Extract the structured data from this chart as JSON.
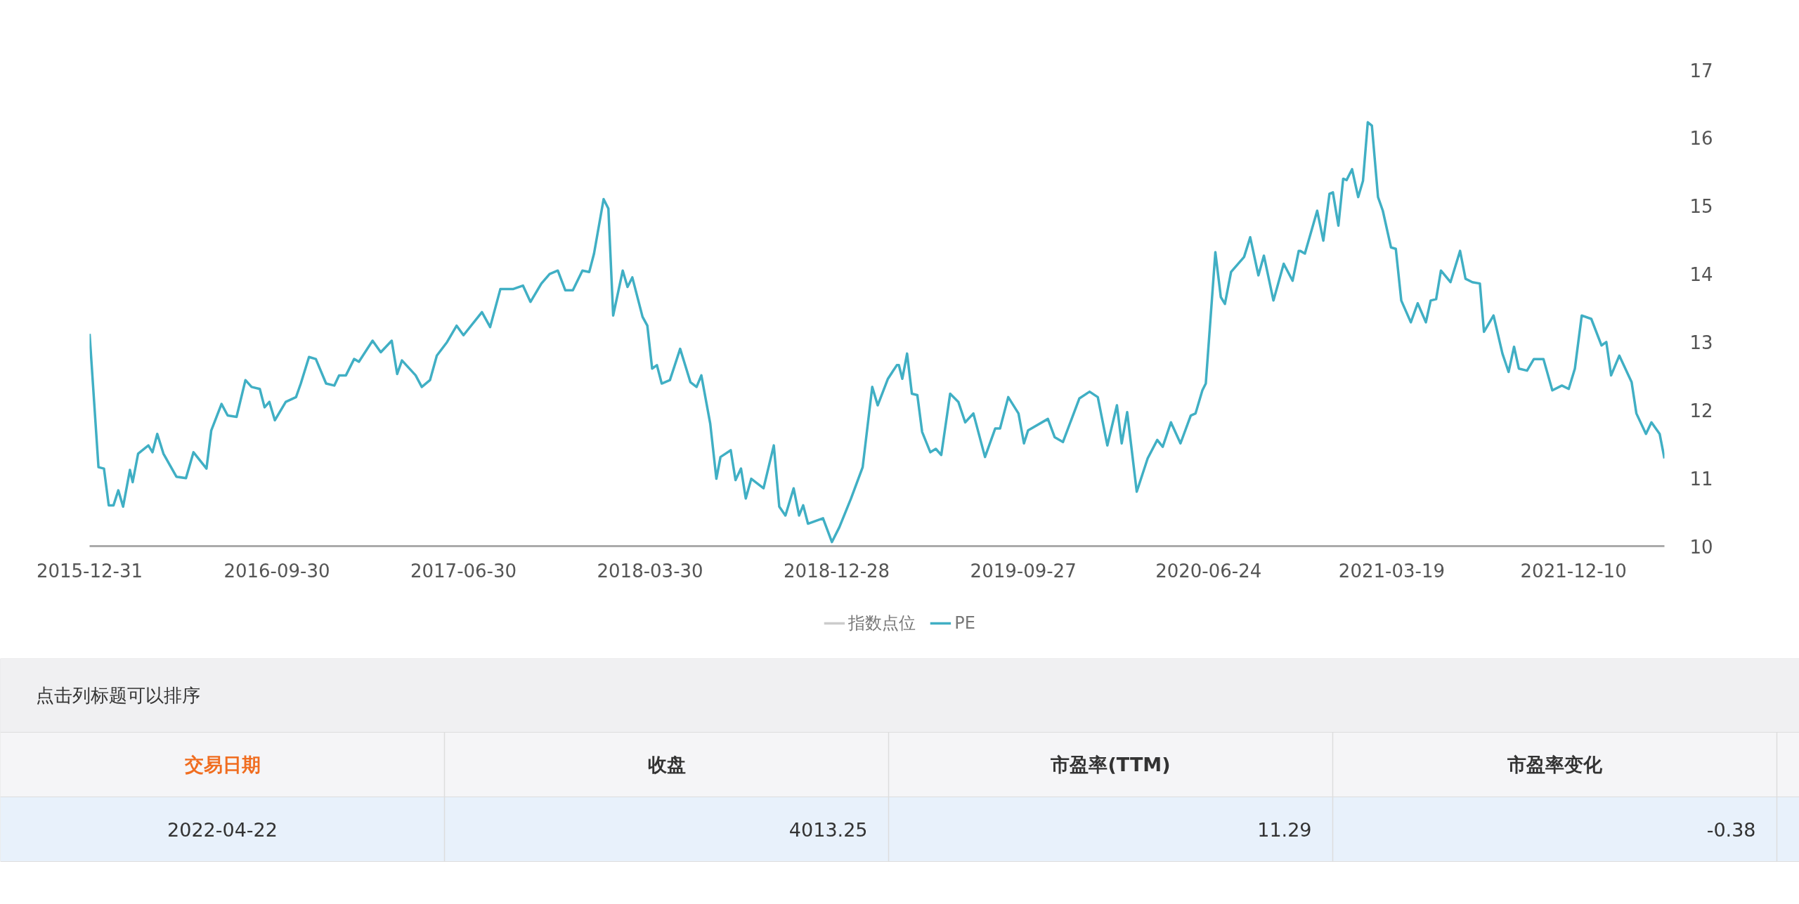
{
  "chart_data": [
    {
      "type": "line",
      "xlim": [
        "2015-12-31",
        "2022-04-22"
      ],
      "xticks": [
        "2015-12-31",
        "2016-09-30",
        "2017-06-30",
        "2018-03-30",
        "2018-12-28",
        "2019-09-27",
        "2020-06-24",
        "2021-03-19",
        "2021-12-10"
      ],
      "ylim": [
        10,
        17
      ],
      "yticks": [
        10,
        11,
        12,
        13,
        14,
        15,
        16,
        17
      ],
      "grid": false,
      "legend": "bottom",
      "series": [
        {
          "name": "指数点位",
          "color": "#cccccc"
        },
        {
          "name": "PE",
          "color": "#40afc4",
          "x": [
            "2015-12-31",
            "2016-01-13",
            "2016-01-21",
            "2016-01-28",
            "2016-02-04",
            "2016-02-11",
            "2016-02-18",
            "2016-02-28",
            "2016-03-03",
            "2016-03-11",
            "2016-03-26",
            "2016-04-01",
            "2016-04-08",
            "2016-04-17",
            "2016-05-06",
            "2016-05-20",
            "2016-05-31",
            "2016-06-19",
            "2016-06-26",
            "2016-07-11",
            "2016-07-20",
            "2016-08-02",
            "2016-08-15",
            "2016-08-24",
            "2016-09-05",
            "2016-09-12",
            "2016-09-19",
            "2016-09-27",
            "2016-10-13",
            "2016-10-28",
            "2016-11-04",
            "2016-11-16",
            "2016-11-26",
            "2016-12-11",
            "2016-12-23",
            "2016-12-30",
            "2017-01-09",
            "2017-01-21",
            "2017-01-28",
            "2017-02-17",
            "2017-03-01",
            "2017-03-17",
            "2017-03-25",
            "2017-04-01",
            "2017-04-21",
            "2017-04-30",
            "2017-05-12",
            "2017-05-22",
            "2017-06-06",
            "2017-06-20",
            "2017-06-30",
            "2017-07-27",
            "2017-08-08",
            "2017-08-23",
            "2017-09-11",
            "2017-09-25",
            "2017-10-06",
            "2017-10-22",
            "2017-11-03",
            "2017-11-15",
            "2017-11-26",
            "2017-12-07",
            "2017-12-21",
            "2017-12-31",
            "2018-01-07",
            "2018-01-21",
            "2018-01-28",
            "2018-02-04",
            "2018-02-18",
            "2018-02-25",
            "2018-03-04",
            "2018-03-19",
            "2018-03-26",
            "2018-04-02",
            "2018-04-09",
            "2018-04-16",
            "2018-04-28",
            "2018-05-13",
            "2018-05-28",
            "2018-06-06",
            "2018-06-13",
            "2018-06-26",
            "2018-07-05",
            "2018-07-11",
            "2018-07-26",
            "2018-08-02",
            "2018-08-10",
            "2018-08-17",
            "2018-08-25",
            "2018-09-12",
            "2018-09-27",
            "2018-10-05",
            "2018-10-14",
            "2018-10-26",
            "2018-11-03",
            "2018-11-09",
            "2018-11-16",
            "2018-12-08",
            "2018-12-21",
            "2019-01-01",
            "2019-01-18",
            "2019-02-04",
            "2019-02-18",
            "2019-02-26",
            "2019-03-13",
            "2019-03-26",
            "2019-03-29",
            "2019-04-03",
            "2019-04-10",
            "2019-04-17",
            "2019-04-25",
            "2019-05-02",
            "2019-05-14",
            "2019-05-22",
            "2019-05-30",
            "2019-06-12",
            "2019-06-24",
            "2019-07-04",
            "2019-07-16",
            "2019-08-02",
            "2019-08-17",
            "2019-08-24",
            "2019-09-05",
            "2019-09-20",
            "2019-09-28",
            "2019-10-04",
            "2019-11-02",
            "2019-11-12",
            "2019-11-24",
            "2019-12-18",
            "2020-01-02",
            "2020-01-14",
            "2020-01-28",
            "2020-02-11",
            "2020-02-18",
            "2020-02-26",
            "2020-03-11",
            "2020-03-27",
            "2020-04-10",
            "2020-04-18",
            "2020-04-30",
            "2020-05-14",
            "2020-05-29",
            "2020-06-05",
            "2020-06-15",
            "2020-06-20",
            "2020-07-04",
            "2020-07-12",
            "2020-07-18",
            "2020-07-27",
            "2020-08-15",
            "2020-08-24",
            "2020-09-05",
            "2020-09-13",
            "2020-09-27",
            "2020-10-12",
            "2020-10-25",
            "2020-11-03",
            "2020-11-05",
            "2020-11-12",
            "2020-11-30",
            "2020-12-09",
            "2020-12-18",
            "2020-12-23",
            "2020-12-31",
            "2021-01-07",
            "2021-01-12",
            "2021-01-20",
            "2021-01-29",
            "2021-02-05",
            "2021-02-12",
            "2021-02-18",
            "2021-02-27",
            "2021-03-06",
            "2021-03-18",
            "2021-03-25",
            "2021-04-02",
            "2021-04-16",
            "2021-04-26",
            "2021-05-08",
            "2021-05-15",
            "2021-05-23",
            "2021-05-30",
            "2021-06-13",
            "2021-06-27",
            "2021-07-05",
            "2021-07-15",
            "2021-07-26",
            "2021-08-01",
            "2021-08-15",
            "2021-08-28",
            "2021-09-06",
            "2021-09-14",
            "2021-09-21",
            "2021-10-03",
            "2021-10-13",
            "2021-10-27",
            "2021-11-09",
            "2021-11-23",
            "2021-12-03",
            "2021-12-12",
            "2021-12-22",
            "2022-01-05",
            "2022-01-20",
            "2022-01-27",
            "2022-02-03",
            "2022-02-15",
            "2022-03-05",
            "2022-03-12",
            "2022-03-26",
            "2022-04-03",
            "2022-04-15",
            "2022-04-22"
          ],
          "values": [
            13.12,
            11.16,
            11.14,
            10.6,
            10.6,
            10.82,
            10.58,
            11.12,
            10.94,
            11.36,
            11.48,
            11.38,
            11.65,
            11.36,
            11.02,
            11.0,
            11.38,
            11.14,
            11.7,
            12.09,
            11.92,
            11.9,
            12.44,
            12.34,
            12.31,
            12.04,
            12.12,
            11.85,
            12.12,
            12.19,
            12.39,
            12.78,
            12.75,
            12.39,
            12.36,
            12.51,
            12.51,
            12.75,
            12.71,
            13.02,
            12.85,
            13.02,
            12.53,
            12.73,
            12.51,
            12.34,
            12.44,
            12.8,
            13.0,
            13.24,
            13.1,
            13.44,
            13.22,
            13.78,
            13.78,
            13.83,
            13.59,
            13.86,
            14.0,
            14.05,
            13.76,
            13.76,
            14.05,
            14.03,
            14.3,
            15.1,
            14.96,
            13.39,
            14.05,
            13.81,
            13.95,
            13.37,
            13.24,
            12.61,
            12.66,
            12.39,
            12.44,
            12.9,
            12.41,
            12.34,
            12.51,
            11.8,
            10.99,
            11.31,
            11.41,
            10.97,
            11.14,
            10.7,
            10.99,
            10.85,
            11.48,
            10.58,
            10.45,
            10.85,
            10.45,
            10.6,
            10.33,
            10.41,
            10.06,
            10.28,
            10.7,
            11.16,
            12.34,
            12.07,
            12.46,
            12.66,
            12.66,
            12.46,
            12.83,
            12.24,
            12.22,
            11.68,
            11.38,
            11.43,
            11.34,
            12.24,
            12.12,
            11.82,
            11.95,
            11.31,
            11.73,
            11.73,
            12.19,
            11.95,
            11.51,
            11.7,
            11.87,
            11.6,
            11.53,
            12.17,
            12.27,
            12.19,
            11.48,
            12.07,
            11.51,
            11.97,
            10.8,
            11.29,
            11.56,
            11.46,
            11.82,
            11.51,
            11.92,
            11.95,
            12.29,
            12.39,
            14.32,
            13.66,
            13.56,
            14.03,
            14.25,
            14.54,
            13.98,
            14.27,
            13.61,
            14.15,
            13.9,
            14.34,
            14.34,
            14.3,
            14.93,
            14.49,
            15.18,
            15.2,
            14.71,
            15.4,
            15.38,
            15.54,
            15.13,
            15.37,
            16.23,
            16.18,
            15.13,
            14.93,
            14.39,
            14.37,
            13.61,
            13.29,
            13.57,
            13.29,
            13.61,
            13.63,
            14.05,
            13.88,
            14.34,
            13.93,
            13.88,
            13.86,
            13.15,
            13.39,
            12.83,
            12.56,
            12.93,
            12.61,
            12.58,
            12.75,
            12.75,
            12.29,
            12.36,
            12.31,
            12.61,
            13.39,
            13.34,
            12.95,
            13.0,
            12.51,
            12.8,
            12.41,
            11.95,
            11.65,
            11.82,
            11.65,
            11.29
          ]
        }
      ]
    },
    {
      "type": "other",
      "title": "点击列标题可以排序",
      "categories": [
        "交易日期",
        "收盘",
        "市盈率(TTM)",
        "市盈率变化"
      ],
      "annotations": [
        "2022-04-22",
        "4013.25",
        "11.29",
        "-0.38"
      ]
    }
  ]
}
